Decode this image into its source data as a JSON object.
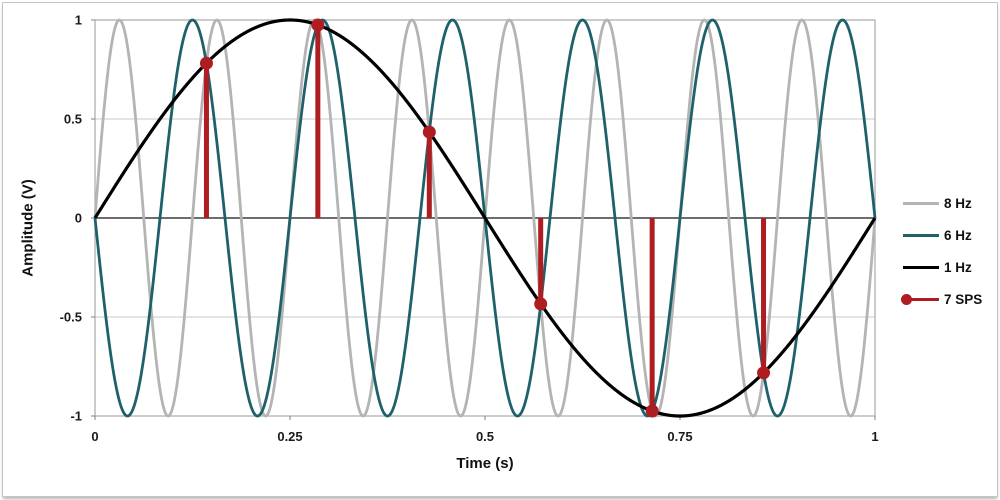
{
  "chart_data": {
    "type": "line",
    "title": "",
    "xlabel": "Time (s)",
    "ylabel": "Amplitude (V)",
    "xlim": [
      0,
      1
    ],
    "ylim": [
      -1,
      1
    ],
    "x_ticks": [
      "0",
      "0.25",
      "0.5",
      "0.75",
      "1"
    ],
    "x_tick_values": [
      0,
      0.25,
      0.5,
      0.75,
      1
    ],
    "y_ticks": [
      "1",
      "0.5",
      "0",
      "-0.5",
      "-1"
    ],
    "y_tick_values": [
      1,
      0.5,
      0,
      -0.5,
      -1
    ],
    "grid": "horizontal-only",
    "legend_position": "right",
    "axes_style": {
      "grid_color": "#c9c9c9",
      "zero_line_color": "#3d3d3d",
      "plot_border_color": "#a9a9a9",
      "tick_color": "#808080"
    },
    "series": [
      {
        "name": "8 Hz",
        "type": "sine",
        "frequency_hz": 8,
        "amplitude": 1,
        "phase_deg": 0,
        "color": "#b4b4b4",
        "width": 2.8
      },
      {
        "name": "6 Hz",
        "type": "sine",
        "frequency_hz": 6,
        "amplitude": 1,
        "phase_deg": 180,
        "color": "#1f616b",
        "width": 2.8
      },
      {
        "name": "1 Hz",
        "type": "sine",
        "frequency_hz": 1,
        "amplitude": 1,
        "phase_deg": 0,
        "color": "#000000",
        "width": 3.2
      }
    ],
    "samples": {
      "name": "7 SPS",
      "rate_sps": 7,
      "color": "#ad1d22",
      "marker": "stem-with-circle",
      "points": [
        {
          "t": 0.1429,
          "v": 0.7818
        },
        {
          "t": 0.2857,
          "v": 0.9749
        },
        {
          "t": 0.4286,
          "v": 0.4339
        },
        {
          "t": 0.5714,
          "v": -0.4339
        },
        {
          "t": 0.7143,
          "v": -0.9749
        },
        {
          "t": 0.8571,
          "v": -0.7818
        }
      ]
    }
  }
}
